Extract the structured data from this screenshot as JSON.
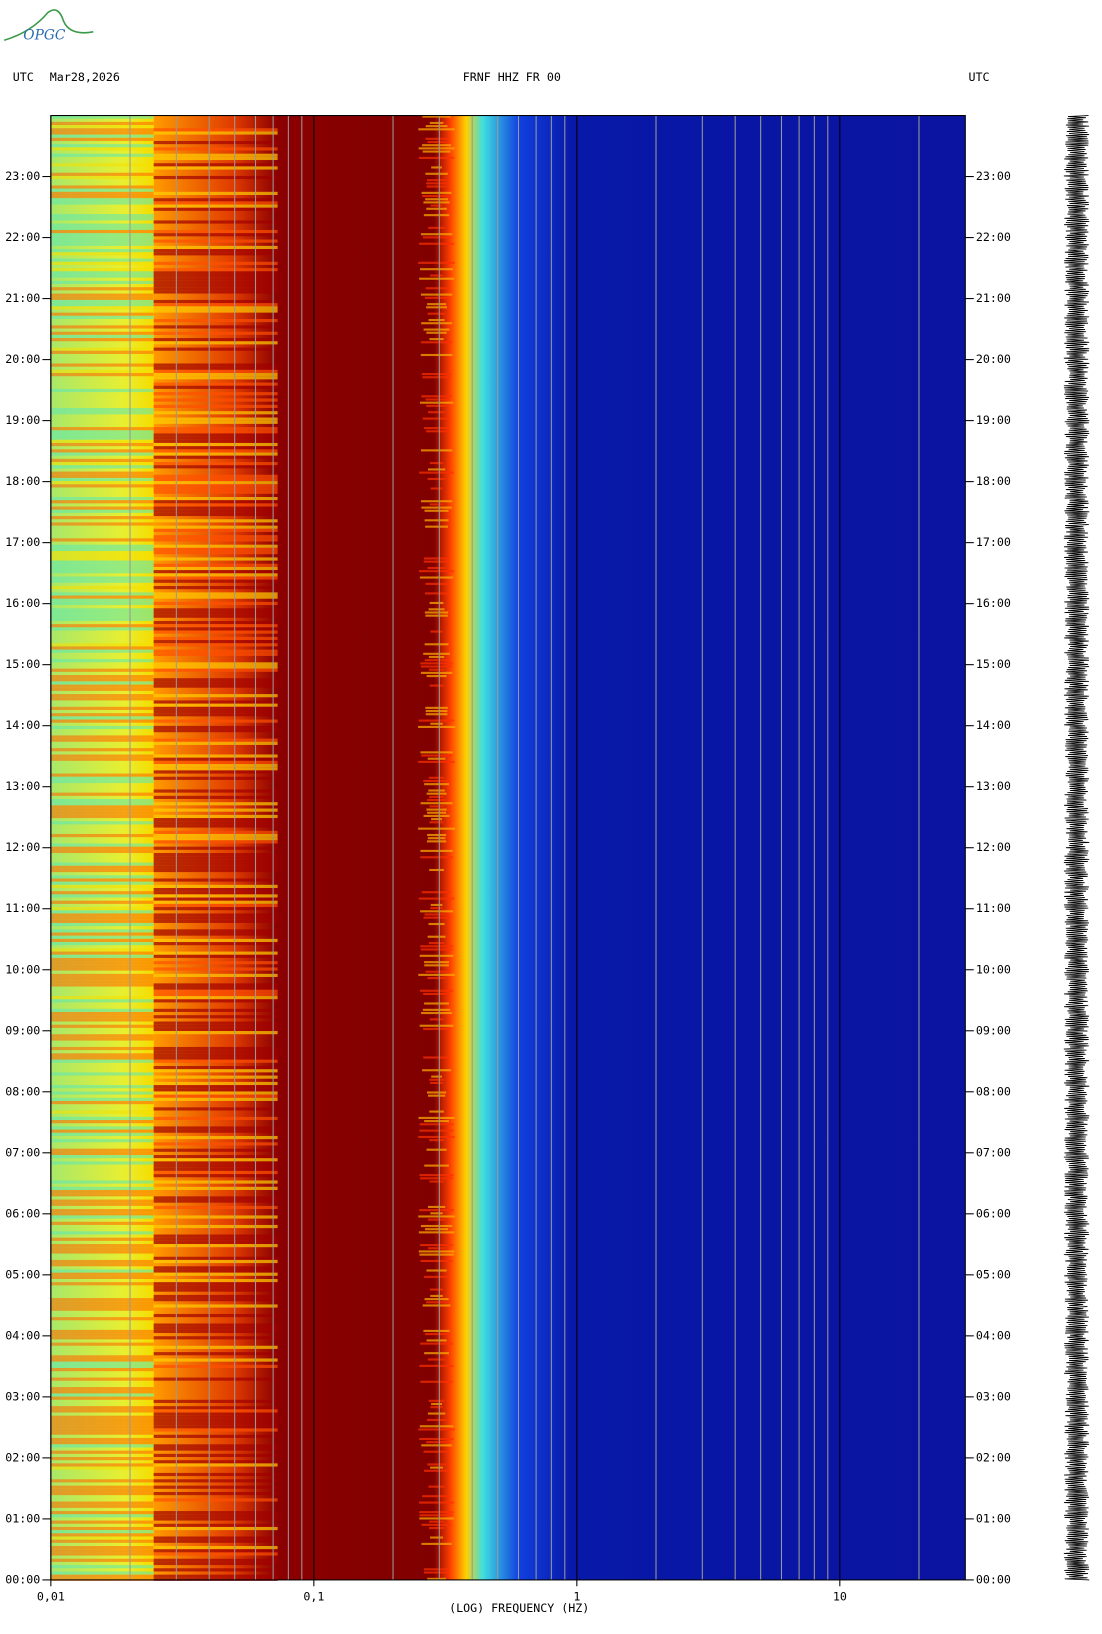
{
  "header": {
    "left": "UTC",
    "date": "Mar28,2026",
    "station": "FRNF HHZ FR 00",
    "right": "UTC",
    "logo": "OPGC"
  },
  "chart_data": {
    "type": "spectrogram",
    "xlabel": "(LOG) FREQUENCY (HZ)",
    "xscale": "log",
    "xlim": [
      0.01,
      30
    ],
    "xticks": [
      {
        "value": 0.01,
        "label": "0,01"
      },
      {
        "value": 0.1,
        "label": "0,1"
      },
      1,
      10
    ],
    "xminorticks": [
      0.02,
      0.03,
      0.04,
      0.05,
      0.06,
      0.07,
      0.08,
      0.09,
      0.2,
      0.3,
      0.4,
      0.5,
      0.6,
      0.7,
      0.8,
      0.9,
      2,
      3,
      4,
      5,
      6,
      7,
      8,
      9,
      20
    ],
    "ylim": [
      0,
      24
    ],
    "yticks": [
      {
        "value": 0,
        "label": "00:00"
      },
      {
        "value": 1,
        "label": "01:00"
      },
      {
        "value": 2,
        "label": "02:00"
      },
      {
        "value": 3,
        "label": "03:00"
      },
      {
        "value": 4,
        "label": "04:00"
      },
      {
        "value": 5,
        "label": "05:00"
      },
      {
        "value": 6,
        "label": "06:00"
      },
      {
        "value": 7,
        "label": "07:00"
      },
      {
        "value": 8,
        "label": "08:00"
      },
      {
        "value": 9,
        "label": "09:00"
      },
      {
        "value": 10,
        "label": "10:00"
      },
      {
        "value": 11,
        "label": "11:00"
      },
      {
        "value": 12,
        "label": "12:00"
      },
      {
        "value": 13,
        "label": "13:00"
      },
      {
        "value": 14,
        "label": "14:00"
      },
      {
        "value": 15,
        "label": "15:00"
      },
      {
        "value": 16,
        "label": "16:00"
      },
      {
        "value": 17,
        "label": "17:00"
      },
      {
        "value": 18,
        "label": "18:00"
      },
      {
        "value": 19,
        "label": "19:00"
      },
      {
        "value": 20,
        "label": "20:00"
      },
      {
        "value": 21,
        "label": "21:00"
      },
      {
        "value": 22,
        "label": "22:00"
      },
      {
        "value": 23,
        "label": "23:00"
      }
    ]
  }
}
